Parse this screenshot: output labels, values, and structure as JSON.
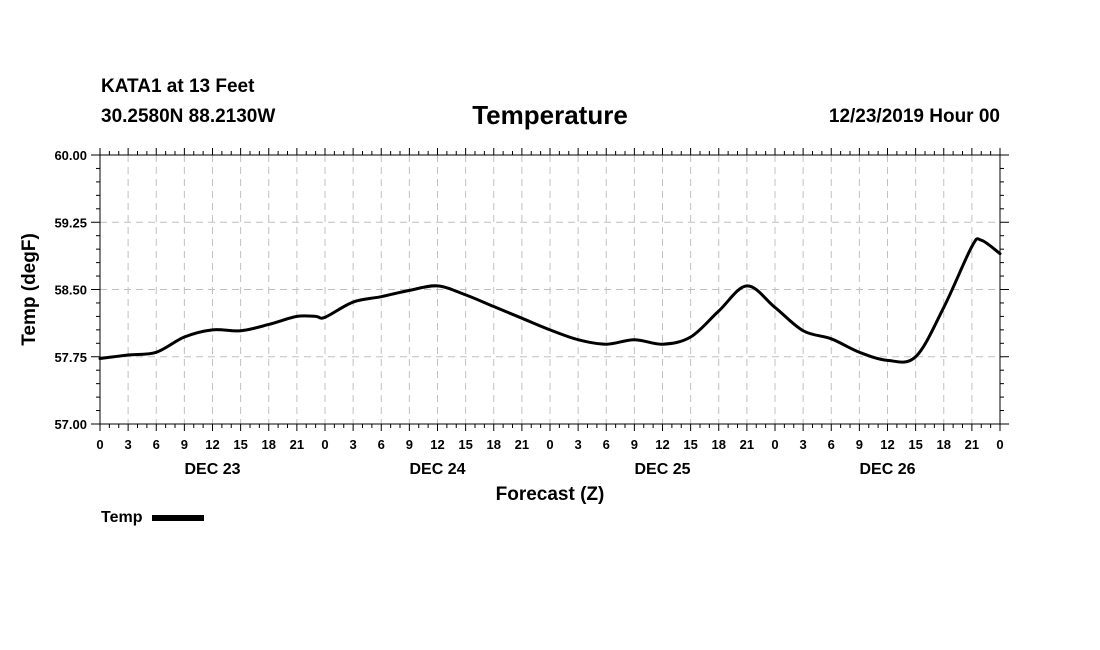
{
  "header": {
    "station": "KATA1 at 13 Feet",
    "coords": "30.2580N 88.2130W",
    "run_time": "12/23/2019 Hour 00"
  },
  "chart_data": {
    "type": "line",
    "title": "Temperature",
    "xlabel": "Forecast (Z)",
    "ylabel": "Temp (degF)",
    "ylim": [
      57.0,
      60.0
    ],
    "yticks": [
      "57.00",
      "57.75",
      "58.50",
      "59.25",
      "60.00"
    ],
    "xlim": [
      0,
      96
    ],
    "xtick_labels": [
      "0",
      "3",
      "6",
      "9",
      "12",
      "15",
      "18",
      "21",
      "0",
      "3",
      "6",
      "9",
      "12",
      "15",
      "18",
      "21",
      "0",
      "3",
      "6",
      "9",
      "12",
      "15",
      "18",
      "21",
      "0",
      "3",
      "6",
      "9",
      "12",
      "15",
      "18",
      "21",
      "0"
    ],
    "day_labels": [
      {
        "label": "DEC 23",
        "hour": 12
      },
      {
        "label": "DEC 24",
        "hour": 36
      },
      {
        "label": "DEC 25",
        "hour": 60
      },
      {
        "label": "DEC 26",
        "hour": 84
      }
    ],
    "grid": true,
    "legend_position": "bottom-left",
    "series": [
      {
        "name": "Temp",
        "color": "#000000",
        "x": [
          0,
          3,
          6,
          9,
          12,
          15,
          18,
          21,
          23,
          24,
          27,
          30,
          33,
          36,
          39,
          42,
          45,
          48,
          51,
          54,
          57,
          60,
          63,
          66,
          69,
          72,
          75,
          78,
          81,
          84,
          87,
          90,
          93,
          94,
          96
        ],
        "values": [
          57.73,
          57.77,
          57.8,
          57.97,
          58.05,
          58.04,
          58.11,
          58.2,
          58.2,
          58.19,
          58.36,
          58.42,
          58.49,
          58.54,
          58.44,
          58.31,
          58.18,
          58.05,
          57.94,
          57.89,
          57.94,
          57.89,
          57.97,
          58.26,
          58.54,
          58.3,
          58.04,
          57.95,
          57.8,
          57.71,
          57.75,
          58.3,
          58.98,
          59.05,
          58.9
        ]
      }
    ]
  }
}
